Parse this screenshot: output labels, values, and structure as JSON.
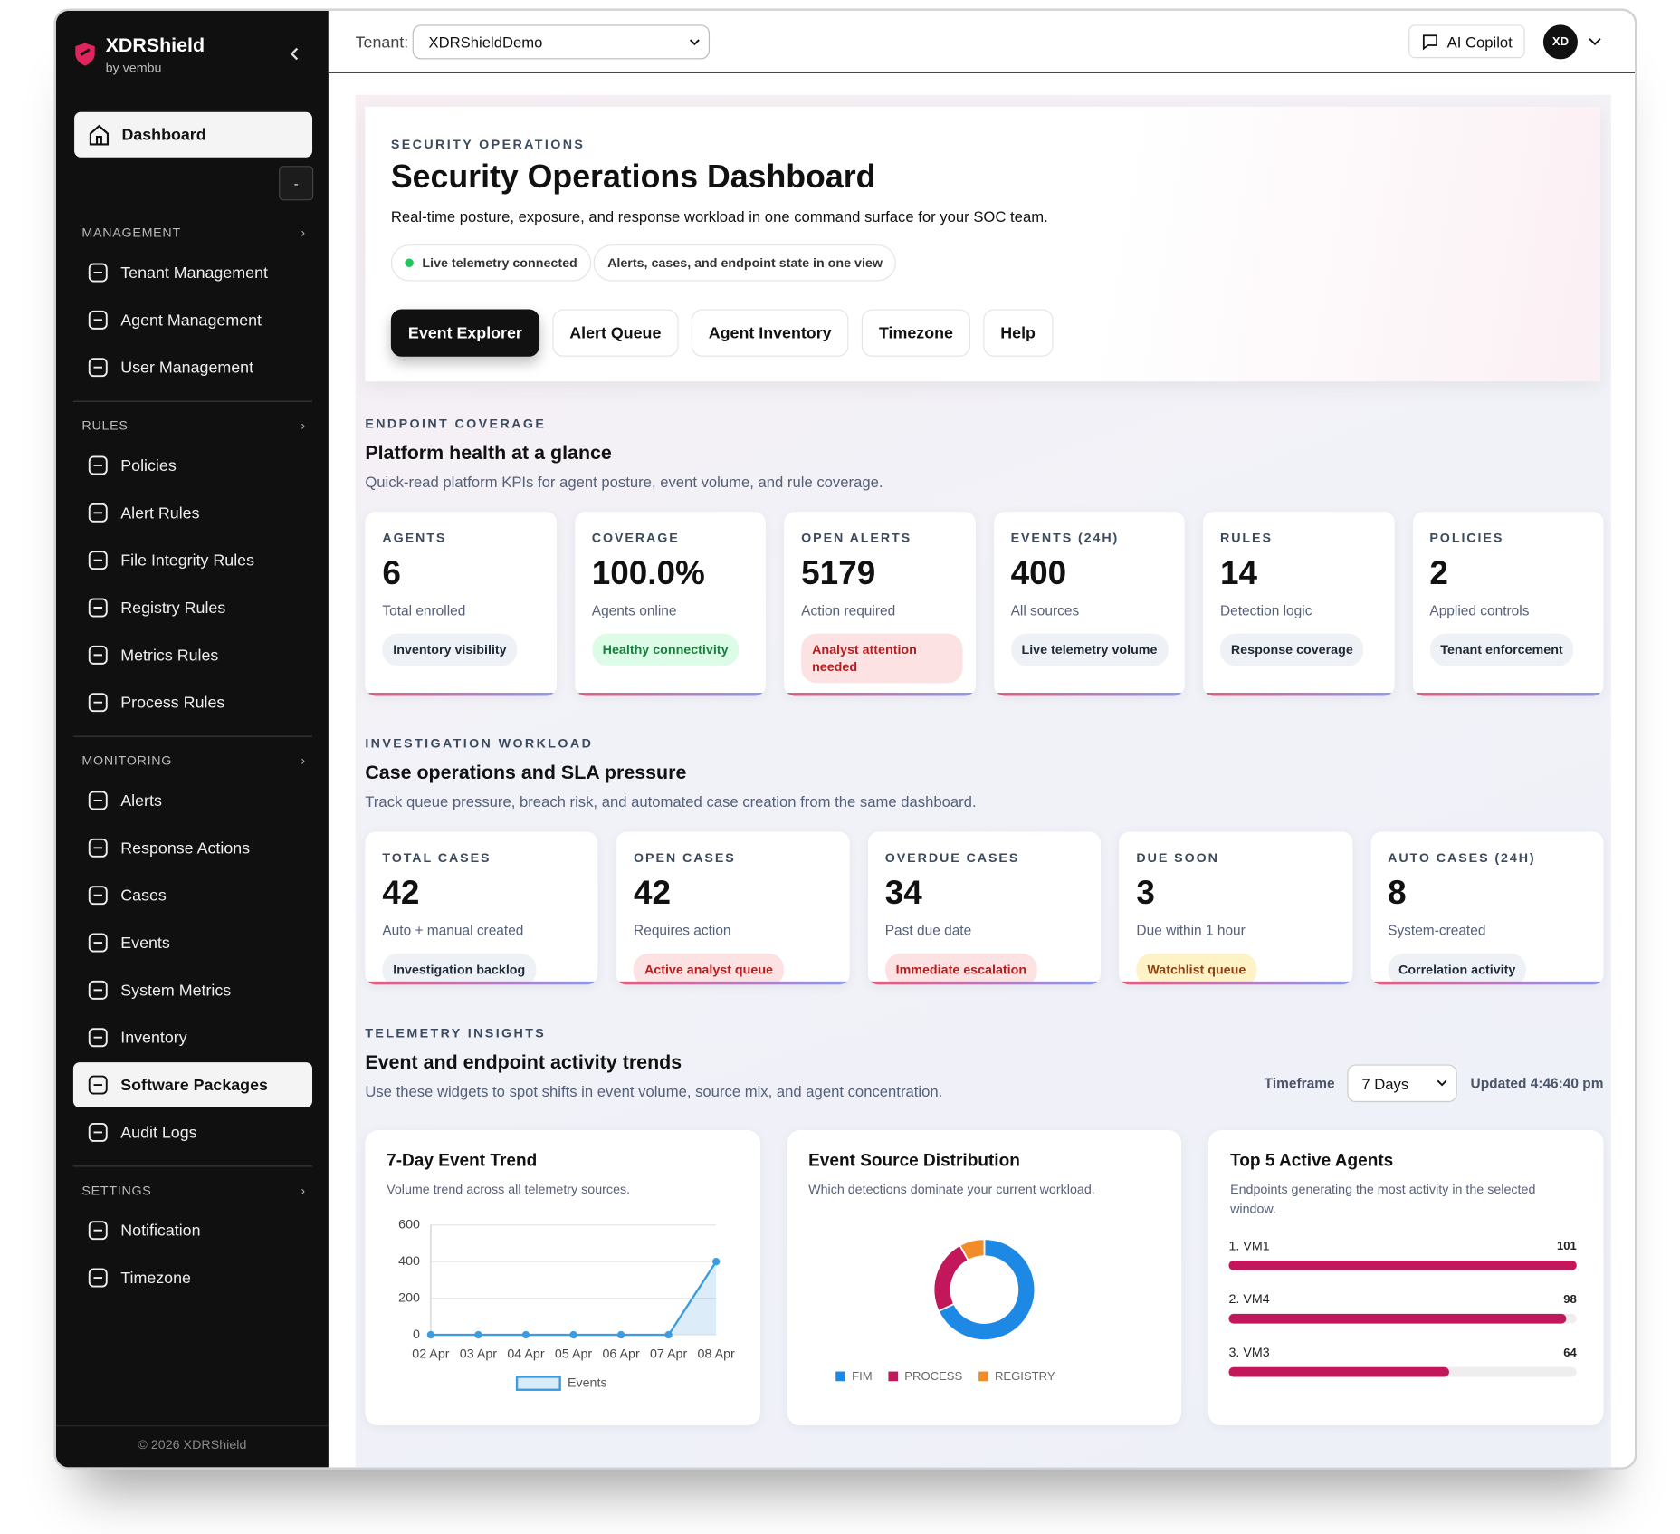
{
  "sidebar": {
    "brand": "XDRShield",
    "byline": "by vembu",
    "dashboard": "Dashboard",
    "collapse": "-",
    "sections": [
      {
        "title": "MANAGEMENT",
        "items": [
          "Tenant Management",
          "Agent Management",
          "User Management"
        ]
      },
      {
        "title": "RULES",
        "items": [
          "Policies",
          "Alert Rules",
          "File Integrity Rules",
          "Registry Rules",
          "Metrics Rules",
          "Process Rules"
        ]
      },
      {
        "title": "MONITORING",
        "items": [
          "Alerts",
          "Response Actions",
          "Cases",
          "Events",
          "System Metrics",
          "Inventory",
          "Software Packages",
          "Audit Logs"
        ]
      },
      {
        "title": "SETTINGS",
        "items": [
          "Notification",
          "Timezone"
        ]
      }
    ],
    "highlight": [
      2,
      6
    ],
    "footer": "© 2026 XDRShield"
  },
  "topbar": {
    "tenant_label": "Tenant:",
    "tenant": "XDRShieldDemo",
    "copilot": "AI Copilot",
    "avatar": "XD"
  },
  "hero": {
    "eyebrow": "SECURITY OPERATIONS",
    "title": "Security Operations Dashboard",
    "subtitle": "Real-time posture, exposure, and response workload in one command surface for your SOC team.",
    "pills": [
      "Live telemetry connected",
      "Alerts, cases, and endpoint state in one view"
    ],
    "buttons": [
      "Event Explorer",
      "Alert Queue",
      "Agent Inventory",
      "Timezone",
      "Help"
    ]
  },
  "coverage": {
    "eyebrow": "ENDPOINT COVERAGE",
    "title": "Platform health at a glance",
    "subtitle": "Quick-read platform KPIs for agent posture, event volume, and rule coverage.",
    "cards": [
      {
        "label": "AGENTS",
        "value": 6,
        "note": "Total enrolled",
        "tag": "Inventory visibility",
        "tone": "neutral"
      },
      {
        "label": "COVERAGE",
        "value": "100.0%",
        "note": "Agents online",
        "tag": "Healthy connectivity",
        "tone": "green"
      },
      {
        "label": "OPEN ALERTS",
        "value": 5179,
        "note": "Action required",
        "tag": "Analyst attention needed",
        "tone": "red"
      },
      {
        "label": "EVENTS (24H)",
        "value": 400,
        "note": "All sources",
        "tag": "Live telemetry volume",
        "tone": "neutral"
      },
      {
        "label": "RULES",
        "value": 14,
        "note": "Detection logic",
        "tag": "Response coverage",
        "tone": "neutral"
      },
      {
        "label": "POLICIES",
        "value": 2,
        "note": "Applied controls",
        "tag": "Tenant enforcement",
        "tone": "neutral"
      }
    ]
  },
  "workload": {
    "eyebrow": "INVESTIGATION WORKLOAD",
    "title": "Case operations and SLA pressure",
    "subtitle": "Track queue pressure, breach risk, and automated case creation from the same dashboard.",
    "cards": [
      {
        "label": "TOTAL CASES",
        "value": 42,
        "note": "Auto + manual created",
        "tag": "Investigation backlog",
        "tone": "neutral"
      },
      {
        "label": "OPEN CASES",
        "value": 42,
        "note": "Requires action",
        "tag": "Active analyst queue",
        "tone": "red"
      },
      {
        "label": "OVERDUE CASES",
        "value": 34,
        "note": "Past due date",
        "tag": "Immediate escalation",
        "tone": "red"
      },
      {
        "label": "DUE SOON",
        "value": 3,
        "note": "Due within 1 hour",
        "tag": "Watchlist queue",
        "tone": "amber"
      },
      {
        "label": "AUTO CASES (24H)",
        "value": 8,
        "note": "System-created",
        "tag": "Correlation activity",
        "tone": "neutral"
      }
    ]
  },
  "telemetry": {
    "eyebrow": "TELEMETRY INSIGHTS",
    "title": "Event and endpoint activity trends",
    "subtitle": "Use these widgets to spot shifts in event volume, source mix, and agent concentration.",
    "timeframe_label": "Timeframe",
    "timeframe": "7 Days",
    "updated": "Updated 4:46:40 pm"
  },
  "chart_data": [
    {
      "type": "line",
      "title": "7-Day Event Trend",
      "subtitle": "Volume trend across all telemetry sources.",
      "x": [
        "02 Apr",
        "03 Apr",
        "04 Apr",
        "05 Apr",
        "06 Apr",
        "07 Apr",
        "08 Apr"
      ],
      "series": [
        {
          "name": "Events",
          "color": "#3b9de0",
          "values": [
            0,
            0,
            0,
            0,
            0,
            0,
            400
          ]
        }
      ],
      "ylim": [
        0,
        600
      ],
      "yticks": [
        0,
        200,
        400,
        600
      ],
      "grid": true
    },
    {
      "type": "pie",
      "donut": true,
      "title": "Event Source Distribution",
      "subtitle": "Which detections dominate your current workload.",
      "categories": [
        "FIM",
        "PROCESS",
        "REGISTRY"
      ],
      "values": [
        68,
        24,
        8
      ],
      "colors": [
        "#1e88e5",
        "#c2185b",
        "#f28c28"
      ]
    },
    {
      "type": "bar",
      "orientation": "horizontal",
      "title": "Top 5 Active Agents",
      "subtitle": "Endpoints generating the most activity in the selected window.",
      "categories": [
        "1. VM1",
        "2. VM4",
        "3. VM3"
      ],
      "values": [
        101,
        98,
        64
      ],
      "color": "#c2185b"
    }
  ]
}
